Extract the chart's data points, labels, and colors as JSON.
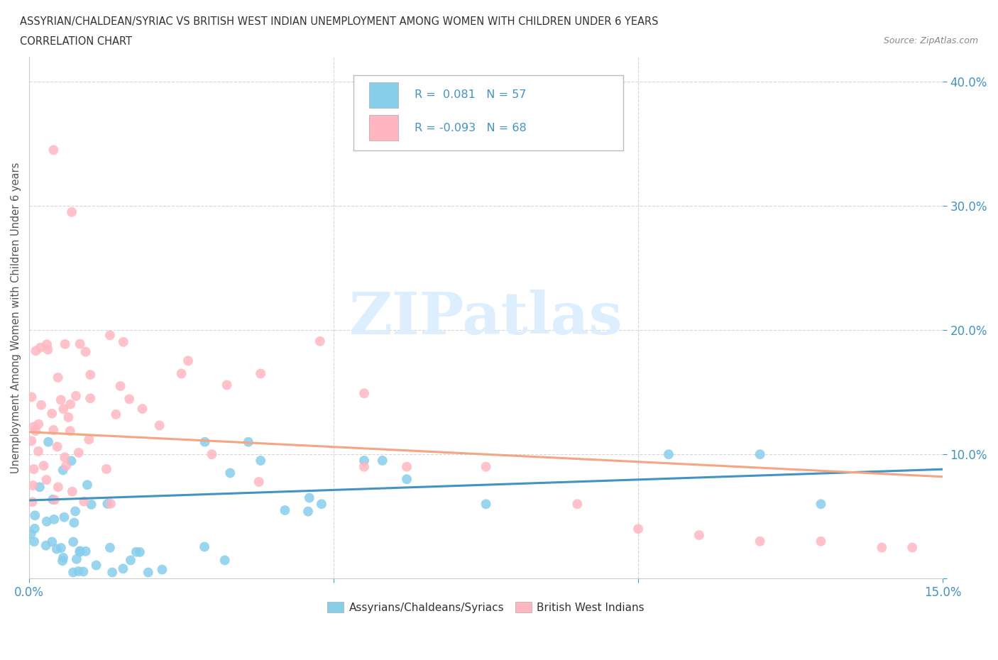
{
  "title_line1": "ASSYRIAN/CHALDEAN/SYRIAC VS BRITISH WEST INDIAN UNEMPLOYMENT AMONG WOMEN WITH CHILDREN UNDER 6 YEARS",
  "title_line2": "CORRELATION CHART",
  "source_text": "Source: ZipAtlas.com",
  "ylabel": "Unemployment Among Women with Children Under 6 years",
  "xlim": [
    0.0,
    0.15
  ],
  "ylim": [
    0.0,
    0.42
  ],
  "color_blue": "#87CEEB",
  "color_pink": "#FFB6C1",
  "color_blue_line": "#4393c3",
  "color_pink_line": "#f4a582",
  "color_axis_text": "#4393c3",
  "color_text": "#333333",
  "watermark_text": "ZIPatlas",
  "watermark_color": "#ddeeff",
  "legend_r_blue": "0.081",
  "legend_n_blue": "57",
  "legend_r_pink": "-0.093",
  "legend_n_pink": "68",
  "legend_label_blue": "Assyrians/Chaldeans/Syriacs",
  "legend_label_pink": "British West Indians",
  "blue_trend_start_y": 0.063,
  "blue_trend_end_y": 0.088,
  "pink_trend_start_y": 0.118,
  "pink_trend_end_y": 0.082
}
